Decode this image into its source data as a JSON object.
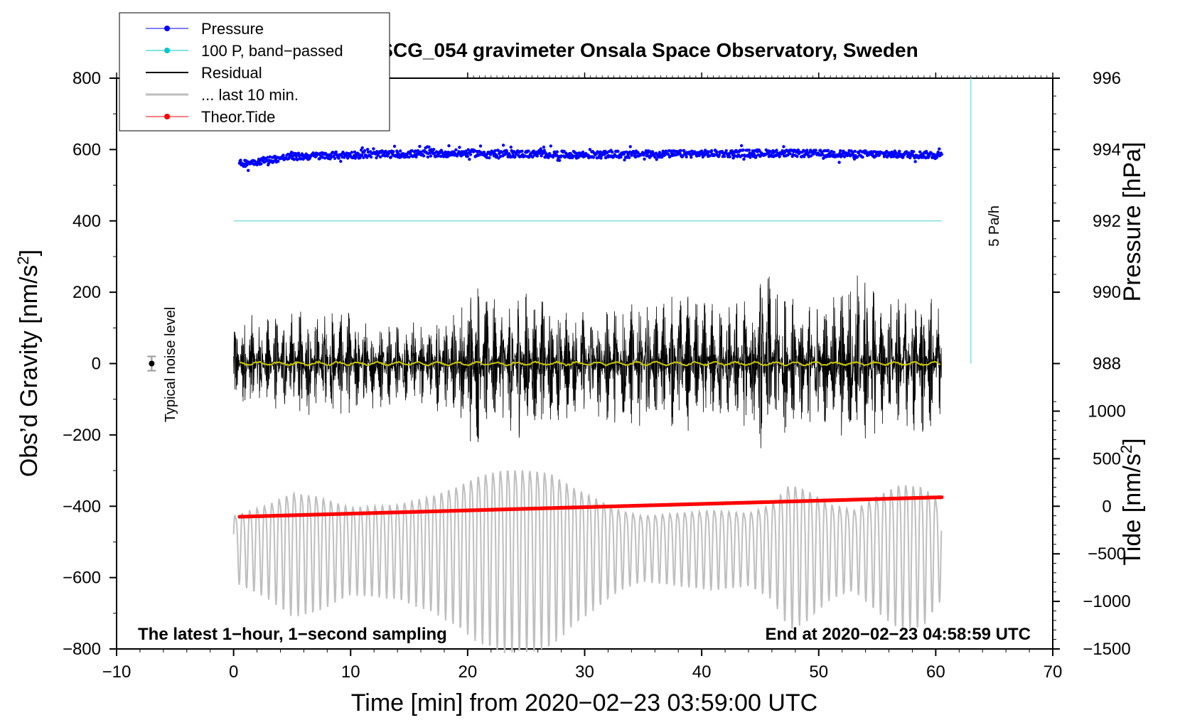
{
  "chart_data": {
    "type": "line",
    "title": "SCG_054 gravimeter Onsala Space Observatory, Sweden",
    "xlabel": "Time [min] from 2020−02−23 03:59:00 UTC",
    "ylabel": "Obs’d Gravity [nm/s²]",
    "ylabel_main": "Obs’d Gravity [nm/s",
    "ylabel_sup": "2",
    "ylabel_end": "]",
    "y2label": "Pressure [hPa]",
    "y3label": "Tide [nm/s²]",
    "y3label_main": "Tide [nm/s",
    "y3label_sup": "2",
    "y3label_end": "]",
    "xlim": [
      -10,
      70
    ],
    "ylim": [
      -800,
      800
    ],
    "x_ticks": [
      -10,
      0,
      10,
      20,
      30,
      40,
      50,
      60,
      70
    ],
    "x_tick_labels": [
      "−10",
      "0",
      "10",
      "20",
      "30",
      "40",
      "50",
      "60",
      "70"
    ],
    "y_ticks": [
      -800,
      -600,
      -400,
      -200,
      0,
      200,
      400,
      600,
      800
    ],
    "y_tick_labels": [
      "−800",
      "−600",
      "−400",
      "−200",
      "0",
      "200",
      "400",
      "600",
      "800"
    ],
    "pressure_axis": {
      "ticks": [
        988,
        990,
        992,
        994,
        996
      ],
      "tick_labels": [
        "988",
        "990",
        "992",
        "994",
        "996"
      ],
      "anchor_value": 992,
      "anchor_gravity": 400,
      "gravity_per_hPa": 100
    },
    "tide_axis": {
      "ticks": [
        -1500,
        -1000,
        -500,
        0,
        500,
        1000
      ],
      "tick_labels": [
        "−1500",
        "−1000",
        "−500",
        "0",
        "500",
        "1000"
      ],
      "anchor_value": 0,
      "anchor_gravity": -400,
      "gravity_per_unit": 0.26667
    },
    "legend": [
      {
        "label": "Pressure",
        "color": "#0000ff",
        "marker": "dot"
      },
      {
        "label": "100 P, band−passed",
        "color": "#00c8c8",
        "marker": "dot"
      },
      {
        "label": "Residual",
        "color": "#000000",
        "marker": "none"
      },
      {
        "label": "... last 10 min.",
        "color": "#bebebe",
        "marker": "none"
      },
      {
        "label": "Theor.Tide",
        "color": "#ff0000",
        "marker": "dot"
      }
    ],
    "series": [
      {
        "name": "Pressure",
        "color": "#0000ff",
        "x_range": [
          0.5,
          60.5
        ],
        "level_hPa": [
          993.6,
          993.8,
          993.85,
          993.9,
          993.85,
          993.9,
          993.85
        ],
        "noise_hPa": 0.12
      },
      {
        "name": "100 P, band-passed",
        "color": "#7fe0e0",
        "x_range": [
          0,
          60.5
        ],
        "value": 400
      },
      {
        "name": "Residual",
        "color": "#000000",
        "x_range": [
          0,
          60.5
        ],
        "envelope_times": [
          0,
          1,
          3,
          5,
          7,
          9,
          11,
          14,
          17,
          19,
          20.5,
          21.5,
          23,
          24.5,
          27,
          30,
          33,
          36,
          38,
          40,
          42,
          44,
          45.5,
          47,
          49,
          51,
          53.5,
          55,
          57,
          58.5,
          60.5
        ],
        "envelope_amplitude": [
          120,
          140,
          130,
          150,
          160,
          150,
          140,
          120,
          130,
          150,
          260,
          200,
          170,
          230,
          180,
          150,
          180,
          170,
          200,
          180,
          170,
          200,
          280,
          200,
          180,
          180,
          280,
          200,
          180,
          220,
          190
        ]
      },
      {
        "name": "Residual (smoothed)",
        "color": "#c8c800",
        "x_range": [
          0.5,
          60.5
        ],
        "value": 0
      },
      {
        "name": "... last 10 min.",
        "color": "#bebebe",
        "x_range": [
          0,
          60.5
        ],
        "center": -500,
        "period_min": 0.63,
        "envelope_times": [
          0,
          3,
          5,
          7,
          10,
          14,
          17,
          19,
          21,
          23,
          25,
          27,
          29,
          31,
          33,
          35,
          38,
          41,
          44,
          46,
          47.5,
          49,
          51,
          53,
          55,
          57,
          59,
          60.5
        ],
        "envelope_amplitude": [
          90,
          130,
          170,
          160,
          120,
          130,
          160,
          190,
          230,
          250,
          250,
          240,
          190,
          150,
          110,
          90,
          100,
          110,
          100,
          130,
          200,
          180,
          130,
          110,
          160,
          200,
          190,
          130
        ]
      },
      {
        "name": "Theor.Tide",
        "color": "#ff0000",
        "x": [
          0.5,
          60.5
        ],
        "tide": [
          -110,
          95
        ]
      }
    ],
    "annotations": {
      "noise_label": "Typical noise level",
      "noise_marker": {
        "x": -7,
        "y": 0,
        "err": 20
      },
      "scale_label": "5 Pa/h",
      "scale_bar": {
        "x": 63,
        "y_range": [
          0,
          800
        ]
      },
      "footer_left": "The latest 1−hour, 1−second sampling",
      "footer_right": "End at 2020−02−23 04:58:59 UTC"
    }
  }
}
